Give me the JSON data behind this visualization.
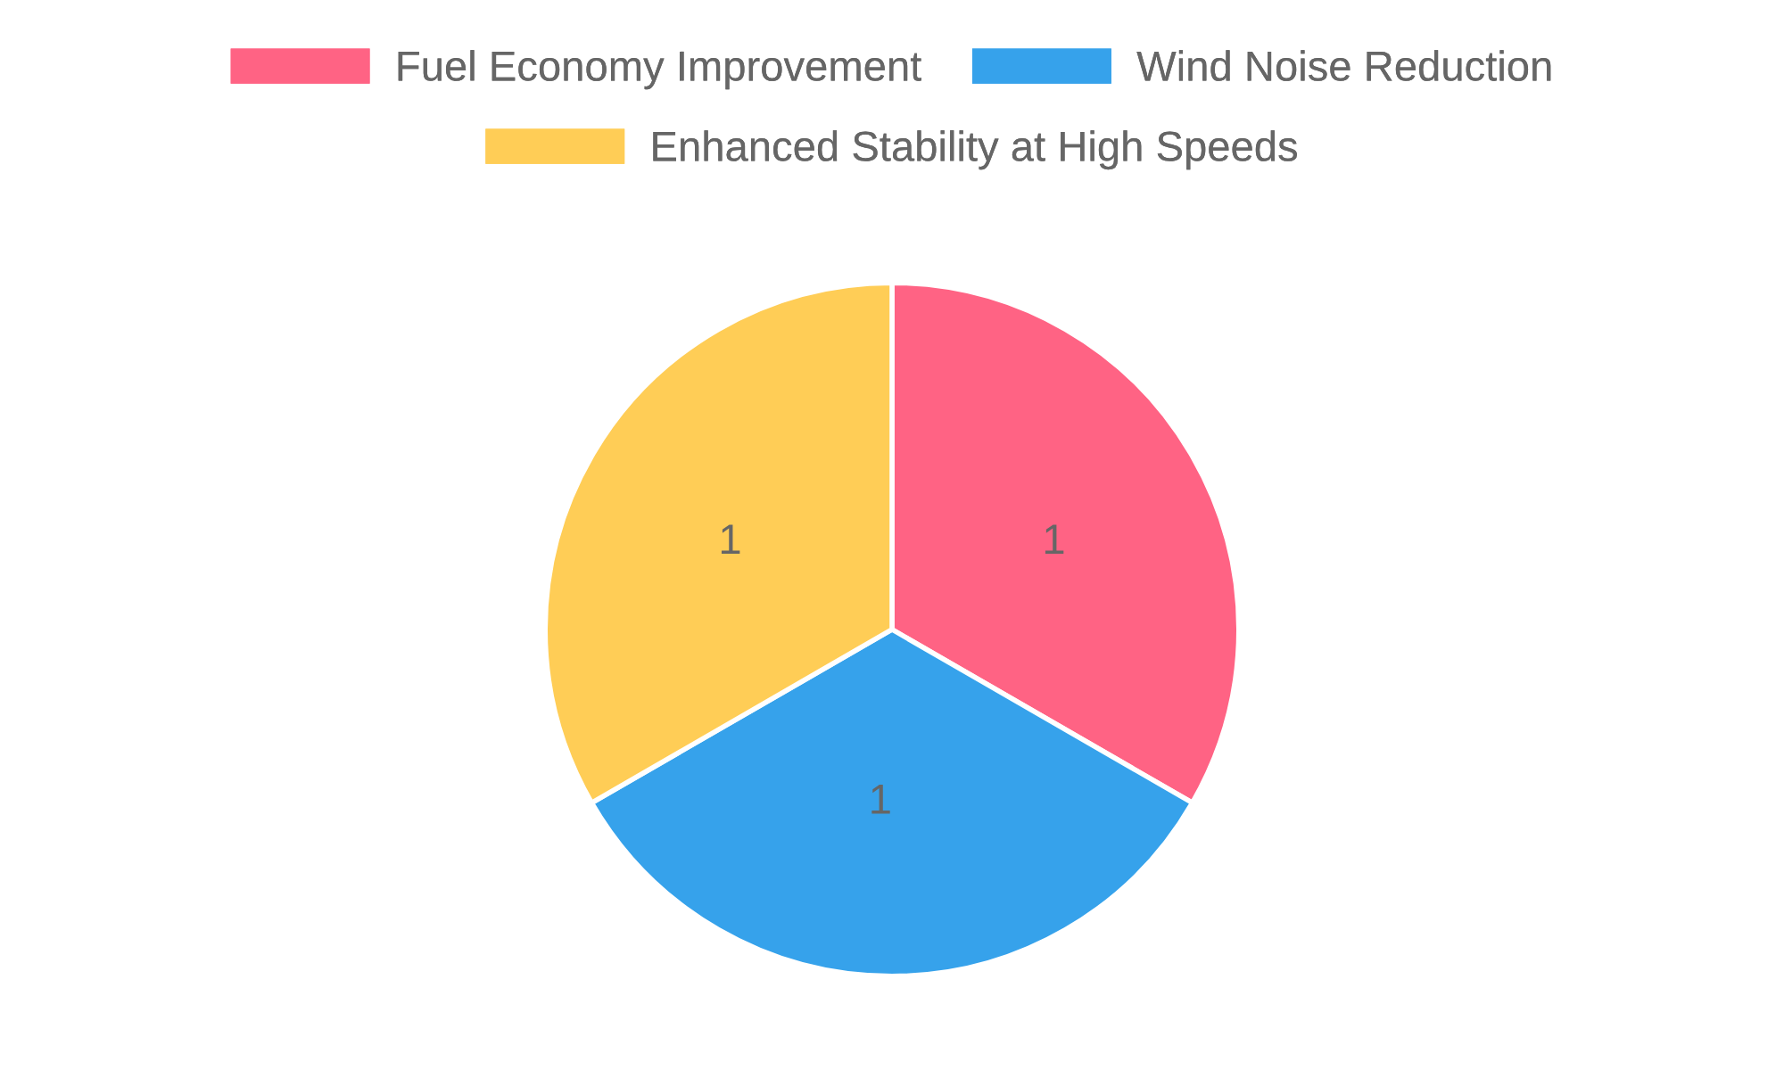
{
  "chart_data": {
    "type": "pie",
    "categories": [
      "Fuel Economy Improvement",
      "Wind Noise Reduction",
      "Enhanced Stability at High Speeds"
    ],
    "values": [
      1,
      1,
      1
    ],
    "colors": [
      "#ff6384",
      "#36a2eb",
      "#ffcd56"
    ],
    "data_labels": true,
    "legend": "top"
  }
}
